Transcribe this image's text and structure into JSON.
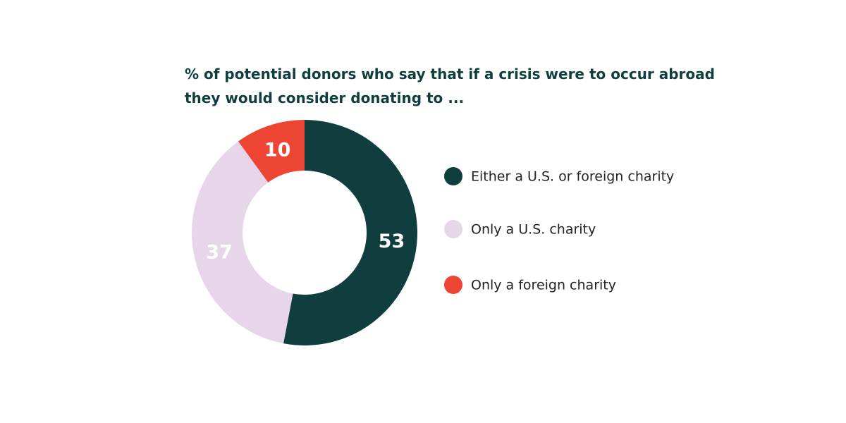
{
  "chart_data": {
    "type": "donut",
    "title": "% of potential donors who say that if a crisis were to occur abroad they would consider donating to ...",
    "categories": [
      "Either a U.S. or foreign charity",
      "Only a U.S. charity",
      "Only a foreign charity"
    ],
    "values": [
      53,
      37,
      10
    ],
    "colors": [
      "#103e3f",
      "#e7d6e9",
      "#ee4434"
    ],
    "label_colors": [
      "#ffffff",
      "#ffffff",
      "#ffffff"
    ]
  }
}
